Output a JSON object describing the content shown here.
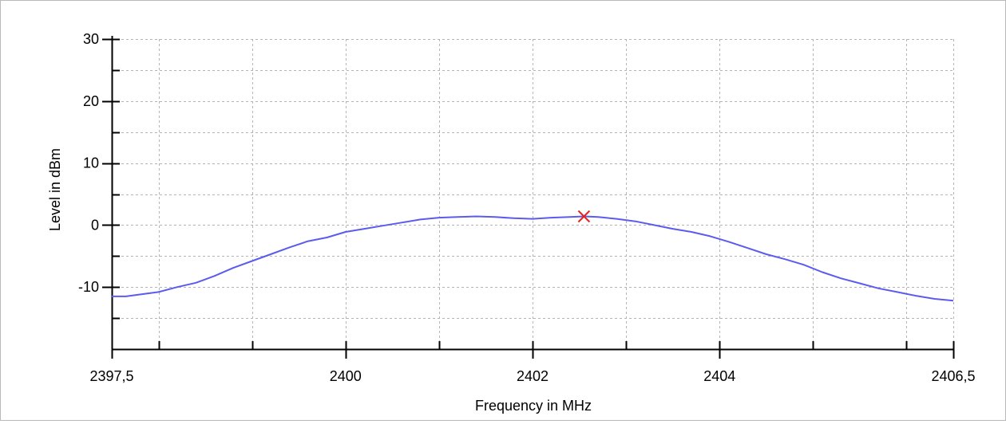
{
  "chart_data": {
    "type": "line",
    "xlabel": "Frequency in MHz",
    "ylabel": "Level in dBm",
    "xlim": [
      2397.5,
      2406.5
    ],
    "ylim": [
      -20,
      30
    ],
    "x_ticks": [
      2397.5,
      2400,
      2402,
      2404,
      2406.5
    ],
    "x_tick_labels": [
      "2397,5",
      "2400",
      "2402",
      "2404",
      "2406,5"
    ],
    "x_minor_ticks": [
      2398,
      2399,
      2400,
      2401,
      2402,
      2403,
      2404,
      2405,
      2406
    ],
    "y_ticks": [
      30,
      20,
      10,
      0,
      -10
    ],
    "y_tick_labels": [
      "30",
      "20",
      "10",
      "0",
      "-10"
    ],
    "y_minor_ticks": [
      25,
      15,
      5,
      -5,
      -15
    ],
    "grid": true,
    "series": [
      {
        "color": "#5b5bef",
        "x": [
          2397.5,
          2397.65,
          2397.8,
          2398.0,
          2398.2,
          2398.4,
          2398.6,
          2398.8,
          2399.0,
          2399.2,
          2399.4,
          2399.6,
          2399.8,
          2400.0,
          2400.2,
          2400.4,
          2400.6,
          2400.8,
          2401.0,
          2401.2,
          2401.4,
          2401.6,
          2401.8,
          2402.0,
          2402.2,
          2402.4,
          2402.55,
          2402.7,
          2402.9,
          2403.1,
          2403.3,
          2403.5,
          2403.7,
          2403.9,
          2404.1,
          2404.3,
          2404.5,
          2404.7,
          2404.9,
          2405.1,
          2405.3,
          2405.5,
          2405.7,
          2405.9,
          2406.1,
          2406.3,
          2406.5
        ],
        "y": [
          -11.5,
          -11.5,
          -11.2,
          -10.8,
          -10.0,
          -9.3,
          -8.2,
          -6.9,
          -5.8,
          -4.7,
          -3.6,
          -2.6,
          -2.0,
          -1.1,
          -0.6,
          -0.1,
          0.4,
          0.9,
          1.2,
          1.3,
          1.4,
          1.3,
          1.1,
          1.0,
          1.2,
          1.3,
          1.4,
          1.3,
          1.0,
          0.6,
          0.0,
          -0.6,
          -1.1,
          -1.8,
          -2.7,
          -3.7,
          -4.7,
          -5.5,
          -6.4,
          -7.6,
          -8.6,
          -9.4,
          -10.2,
          -10.8,
          -11.4,
          -11.9,
          -12.2
        ]
      }
    ],
    "marker": {
      "x": 2402.55,
      "y": 1.4,
      "shape": "x",
      "color": "#e8221c"
    }
  }
}
